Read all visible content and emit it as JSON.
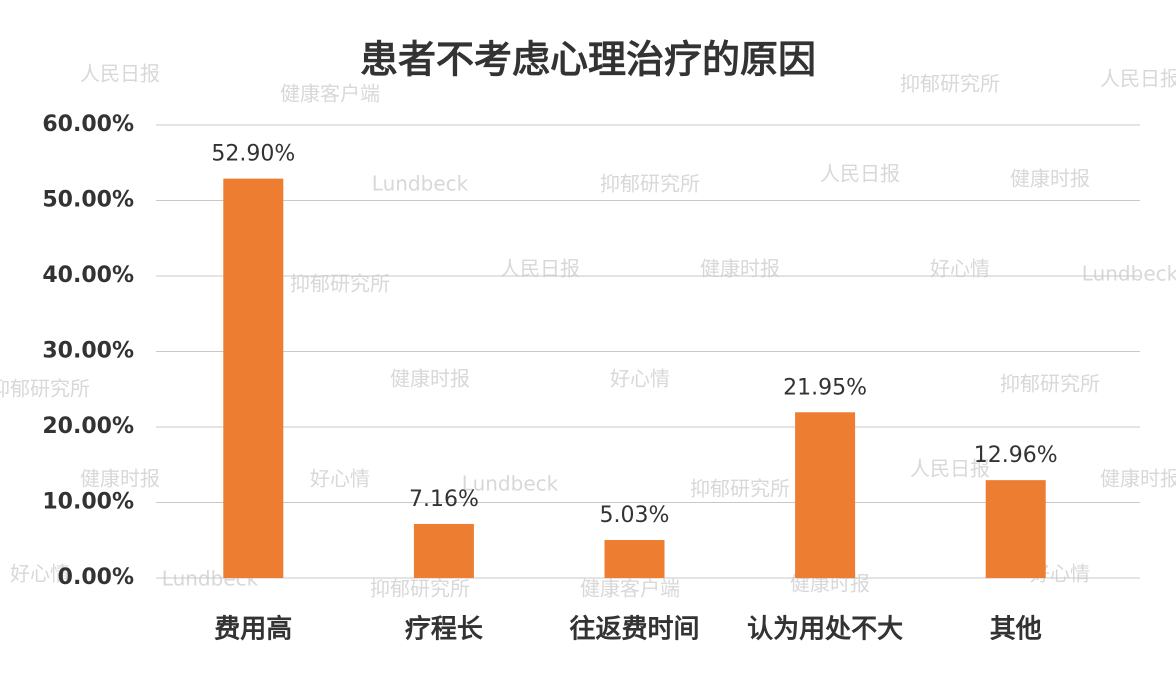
{
  "chart_data": {
    "type": "bar",
    "title": "患者不考虑心理治疗的原因",
    "categories": [
      "费用高",
      "疗程长",
      "往返费时间",
      "认为用处不大",
      "其他"
    ],
    "values": [
      52.9,
      7.16,
      5.03,
      21.95,
      12.96
    ],
    "value_labels": [
      "52.90%",
      "7.16%",
      "5.03%",
      "21.95%",
      "12.96%"
    ],
    "color": "#ed7d31",
    "ylim": [
      0,
      60
    ],
    "yticks": [
      {
        "value": 0,
        "label": "0.00%"
      },
      {
        "value": 10,
        "label": "10.00%"
      },
      {
        "value": 20,
        "label": "20.00%"
      },
      {
        "value": 30,
        "label": "30.00%"
      },
      {
        "value": 40,
        "label": "40.00%"
      },
      {
        "value": 50,
        "label": "50.00%"
      },
      {
        "value": 60,
        "label": "60.00%"
      }
    ],
    "grid": true
  },
  "watermarks": [
    "人民日报",
    "健康客户端",
    "抑郁研究所",
    "好心情",
    "健康时报",
    "Lundbeck"
  ]
}
